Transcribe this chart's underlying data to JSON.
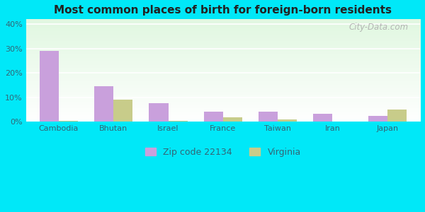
{
  "title": "Most common places of birth for foreign-born residents",
  "categories": [
    "Cambodia",
    "Bhutan",
    "Israel",
    "France",
    "Taiwan",
    "Iran",
    "Japan"
  ],
  "zip_values": [
    29.0,
    14.5,
    7.5,
    4.0,
    4.0,
    3.2,
    2.5
  ],
  "state_values": [
    0.5,
    9.0,
    0.4,
    1.7,
    1.0,
    0.0,
    5.0
  ],
  "zip_color": "#c9a0dc",
  "state_color": "#c8cc8a",
  "ylim": [
    0,
    42
  ],
  "yticks": [
    0,
    10,
    20,
    30,
    40
  ],
  "ytick_labels": [
    "0%",
    "10%",
    "20%",
    "30%",
    "40%"
  ],
  "bg_outer": "#00e8f8",
  "legend_zip_label": "Zip code 22134",
  "legend_state_label": "Virginia",
  "bar_width": 0.35,
  "watermark": "City-Data.com",
  "tick_color": "#336677",
  "title_color": "#222222"
}
